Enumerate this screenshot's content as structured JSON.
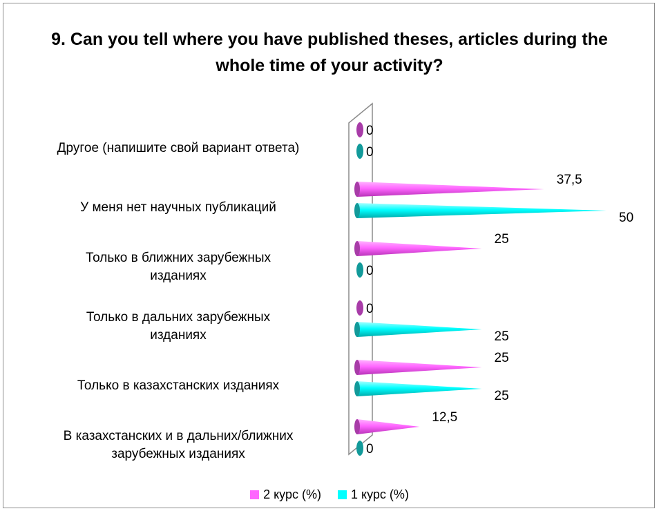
{
  "chart_data": {
    "type": "bar",
    "orientation": "horizontal",
    "title": "9. Can you tell where you have published theses, articles during the whole time of your activity?",
    "categories": [
      "Другое (напишите свой вариант ответа)",
      "У меня нет научных публикаций",
      "Только в ближних зарубежных изданиях",
      "Только в дальних зарубежных изданиях",
      "Только в казахстанских изданиях",
      "В казахстанских и в дальних/ближних зарубежных изданиях"
    ],
    "category_lines": [
      [
        "Другое (напишите свой вариант ответа)"
      ],
      [
        "У меня нет научных публикаций"
      ],
      [
        "Только в ближних зарубежных",
        "изданиях"
      ],
      [
        "Только в дальних зарубежных",
        "изданиях"
      ],
      [
        "Только в казахстанских изданиях"
      ],
      [
        "В казахстанских и в дальних/ближних",
        "зарубежных изданиях"
      ]
    ],
    "series": [
      {
        "name": "2 курс (%)",
        "color": "#ff66ff",
        "values": [
          0,
          37.5,
          25,
          0,
          25,
          12.5
        ],
        "labels": [
          "0",
          "37,5",
          "25",
          "0",
          "25",
          "12,5"
        ]
      },
      {
        "name": "1 курс (%)",
        "color": "#00ffff",
        "values": [
          0,
          50,
          0,
          25,
          25,
          0
        ],
        "labels": [
          "0",
          "50",
          "0",
          "25",
          "25",
          "0"
        ]
      }
    ],
    "xlim": [
      0,
      50
    ],
    "grid": false,
    "legend_position": "bottom",
    "bar_shape": "cone"
  },
  "legend": [
    {
      "label": "2 курс (%)",
      "color": "#ff66ff"
    },
    {
      "label": "1 курс (%)",
      "color": "#00ffff"
    }
  ]
}
